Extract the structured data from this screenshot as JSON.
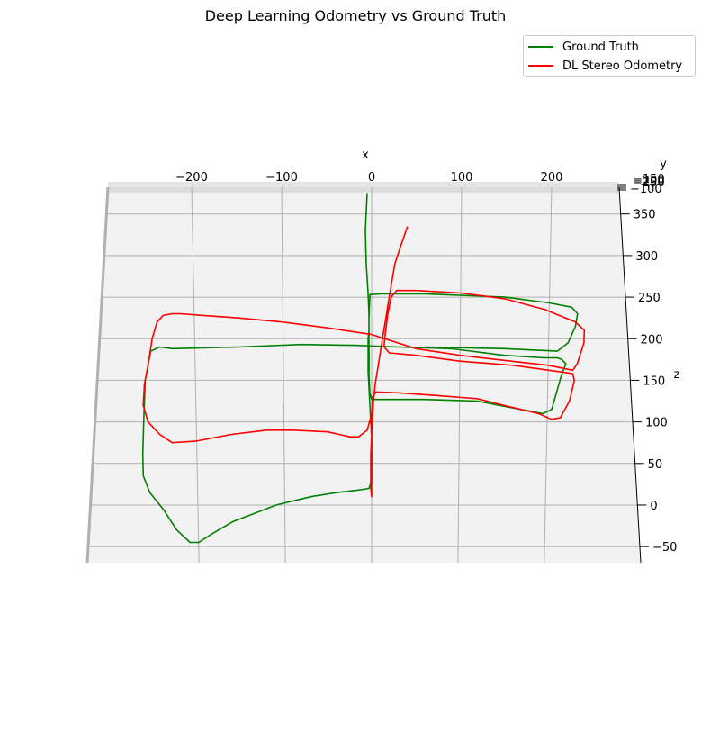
{
  "chart_data": {
    "type": "line",
    "projection": "3d",
    "title": "Deep Learning Odometry vs Ground Truth",
    "xlabel": "x",
    "ylabel": "y",
    "zlabel": "z",
    "x_ticks": [
      "−200",
      "−100",
      "0",
      "100",
      "200"
    ],
    "y_ticks": [
      "−150",
      "−200",
      "−250",
      "−100"
    ],
    "z_ticks": [
      "350",
      "300",
      "250",
      "200",
      "150",
      "100",
      "50",
      "0",
      "−50"
    ],
    "xlim": [
      -300,
      280
    ],
    "zlim": [
      -60,
      380
    ],
    "legend_position": "top-right",
    "series": [
      {
        "name": "Ground Truth",
        "color": "#008000",
        "points": [
          [
            -5,
            375
          ],
          [
            -7,
            330
          ],
          [
            -6,
            290
          ],
          [
            -4,
            255
          ],
          [
            -3,
            230
          ],
          [
            -3,
            210
          ],
          [
            -4,
            200
          ],
          [
            -4,
            190
          ],
          [
            -4,
            180
          ],
          [
            -4,
            160
          ],
          [
            -3,
            140
          ],
          [
            -2,
            120
          ],
          [
            -1,
            100
          ],
          [
            0,
            80
          ],
          [
            0,
            60
          ],
          [
            0,
            45
          ],
          [
            0,
            30
          ],
          [
            -3,
            20
          ],
          [
            -15,
            18
          ],
          [
            -40,
            15
          ],
          [
            -70,
            10
          ],
          [
            -110,
            0
          ],
          [
            -135,
            -10
          ],
          [
            -160,
            -20
          ],
          [
            -185,
            -35
          ],
          [
            -200,
            -45
          ],
          [
            -210,
            -45
          ],
          [
            -225,
            -30
          ],
          [
            -240,
            -5
          ],
          [
            -255,
            15
          ],
          [
            -262,
            35
          ],
          [
            -262,
            60
          ],
          [
            -260,
            100
          ],
          [
            -257,
            150
          ],
          [
            -250,
            185
          ],
          [
            -240,
            190
          ],
          [
            -225,
            188
          ],
          [
            -150,
            190
          ],
          [
            -80,
            193
          ],
          [
            -20,
            192
          ],
          [
            30,
            190
          ],
          [
            90,
            188
          ],
          [
            150,
            180
          ],
          [
            195,
            177
          ],
          [
            210,
            177
          ],
          [
            215,
            175
          ],
          [
            220,
            170
          ],
          [
            215,
            155
          ],
          [
            210,
            135
          ],
          [
            205,
            115
          ],
          [
            195,
            110
          ],
          [
            170,
            115
          ],
          [
            120,
            125
          ],
          [
            60,
            127
          ],
          [
            0,
            127
          ],
          [
            -2,
            135
          ],
          [
            -3,
            155
          ],
          [
            -3,
            180
          ],
          [
            -3,
            200
          ],
          [
            -3,
            225
          ],
          [
            -2,
            250
          ],
          [
            -2,
            253
          ],
          [
            10,
            254
          ],
          [
            60,
            254
          ],
          [
            150,
            250
          ],
          [
            200,
            243
          ],
          [
            225,
            238
          ],
          [
            232,
            230
          ],
          [
            230,
            215
          ],
          [
            222,
            195
          ],
          [
            210,
            185
          ],
          [
            150,
            188
          ],
          [
            60,
            190
          ]
        ]
      },
      {
        "name": "DL Stereo Odometry",
        "color": "#ff0000",
        "points": [
          [
            40,
            335
          ],
          [
            32,
            310
          ],
          [
            26,
            290
          ],
          [
            22,
            265
          ],
          [
            19,
            245
          ],
          [
            16,
            225
          ],
          [
            13,
            205
          ],
          [
            10,
            185
          ],
          [
            7,
            165
          ],
          [
            4,
            145
          ],
          [
            2,
            125
          ],
          [
            1,
            105
          ],
          [
            0,
            85
          ],
          [
            -1,
            60
          ],
          [
            -1,
            40
          ],
          [
            -1,
            20
          ],
          [
            0,
            10
          ],
          [
            0,
            30
          ],
          [
            0,
            60
          ],
          [
            0,
            90
          ],
          [
            0,
            110
          ],
          [
            1,
            130
          ],
          [
            5,
            136
          ],
          [
            30,
            135
          ],
          [
            70,
            132
          ],
          [
            120,
            128
          ],
          [
            150,
            120
          ],
          [
            190,
            110
          ],
          [
            205,
            103
          ],
          [
            215,
            105
          ],
          [
            225,
            125
          ],
          [
            230,
            150
          ],
          [
            228,
            158
          ],
          [
            215,
            160
          ],
          [
            160,
            168
          ],
          [
            100,
            173
          ],
          [
            50,
            180
          ],
          [
            20,
            183
          ],
          [
            14,
            190
          ],
          [
            15,
            203
          ],
          [
            18,
            228
          ],
          [
            22,
            250
          ],
          [
            28,
            258
          ],
          [
            50,
            258
          ],
          [
            100,
            255
          ],
          [
            150,
            248
          ],
          [
            195,
            235
          ],
          [
            230,
            220
          ],
          [
            240,
            210
          ],
          [
            240,
            195
          ],
          [
            233,
            170
          ],
          [
            228,
            162
          ],
          [
            200,
            168
          ],
          [
            150,
            174
          ],
          [
            100,
            180
          ],
          [
            50,
            188
          ],
          [
            0,
            205
          ],
          [
            -50,
            213
          ],
          [
            -100,
            220
          ],
          [
            -150,
            225
          ],
          [
            -190,
            228
          ],
          [
            -215,
            230
          ],
          [
            -225,
            230
          ],
          [
            -235,
            228
          ],
          [
            -242,
            220
          ],
          [
            -248,
            200
          ],
          [
            -253,
            170
          ],
          [
            -258,
            145
          ],
          [
            -260,
            120
          ],
          [
            -255,
            100
          ],
          [
            -242,
            85
          ],
          [
            -228,
            75
          ],
          [
            -200,
            77
          ],
          [
            -160,
            85
          ],
          [
            -120,
            90
          ],
          [
            -90,
            90
          ],
          [
            -50,
            88
          ],
          [
            -25,
            82
          ],
          [
            -15,
            82
          ],
          [
            -5,
            90
          ],
          [
            0,
            110
          ]
        ]
      }
    ]
  }
}
